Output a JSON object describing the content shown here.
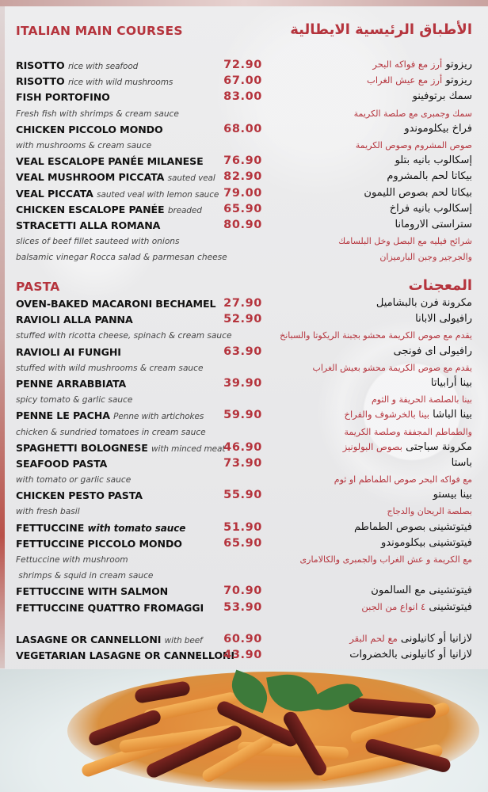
{
  "colors": {
    "accent": "#b5343d",
    "text": "#111111",
    "background": "#e9e9ea"
  },
  "sections": [
    {
      "title": "ITALIAN MAIN COURSES",
      "title_ar": "الأطباق الرئيسية الايطالية",
      "rows": [
        {
          "kind": "item",
          "name": "RISOTTO",
          "desc": "rice with seafood",
          "price": "72.90",
          "ar": "ريزوتو",
          "ar_desc": "أرز مع فواكه البحر"
        },
        {
          "kind": "item",
          "name": "RISOTTO",
          "desc": "rice with wild mushrooms",
          "price": "67.00",
          "ar": "ريزوتو",
          "ar_desc": "أرز مع عيش الغراب"
        },
        {
          "kind": "item",
          "name": "FISH PORTOFINO",
          "price": "83.00",
          "ar": "سمك برتوفينو"
        },
        {
          "kind": "desc",
          "en": "Fresh fish with shrimps & cream sauce",
          "ar": "سمك وجمبرى مع صلصة الكريمة"
        },
        {
          "kind": "item",
          "name": "CHICKEN PICCOLO MONDO",
          "price": "68.00",
          "ar": "فراخ بيكلوموندو"
        },
        {
          "kind": "desc",
          "en": "with mushrooms & cream sauce",
          "ar": "صوص المشروم وصوص الكريمة"
        },
        {
          "kind": "item",
          "name": "VEAL ESCALOPE PANÉE MILANESE",
          "price": "76.90",
          "ar": "إسكالوب بانيه بتلو"
        },
        {
          "kind": "item",
          "name": "VEAL MUSHROOM PICCATA",
          "desc": "sauted veal",
          "price": "82.90",
          "ar": "بيكاتا لحم بالمشروم"
        },
        {
          "kind": "item",
          "name": "VEAL PICCATA",
          "desc": "sauted veal with lemon sauce",
          "price": "79.00",
          "ar": "بيكاتا لحم بصوص الليمون"
        },
        {
          "kind": "item",
          "name": "CHICKEN ESCALOPE PANÉE",
          "desc": "breaded",
          "price": "65.90",
          "ar": "إسكالوب بانيه فراخ"
        },
        {
          "kind": "item",
          "name": "STRACETTI ALLA ROMANA",
          "price": "80.90",
          "ar": "ستراستى الارومانا"
        },
        {
          "kind": "desc",
          "en": "slices of beef fillet sauteed with onions",
          "ar": "شرائح فيليه مع البصل وخل البلسامك"
        },
        {
          "kind": "desc",
          "en": "balsamic vinegar Rocca salad & parmesan cheese",
          "ar": "والجرجير وجبن البارميزان"
        }
      ]
    },
    {
      "title": "PASTA",
      "title_ar": "المعجنات",
      "rows": [
        {
          "kind": "item",
          "name": "OVEN-BAKED MACARONI BECHAMEL",
          "price": "27.90",
          "ar": "مكرونة فرن بالبشاميل"
        },
        {
          "kind": "item",
          "name": "RAVIOLI ALLA PANNA",
          "price": "52.90",
          "ar": "رافيولى الابانا"
        },
        {
          "kind": "desc",
          "en": "stuffed with ricotta cheese, spinach & cream sauce",
          "ar": "يقدم مع صوص الكريمة محشو بجبنة الريكوتا والسبانخ"
        },
        {
          "kind": "item",
          "name": "RAVIOLI AI FUNGHI",
          "price": "63.90",
          "ar": "رافيولى اى فونجى"
        },
        {
          "kind": "desc",
          "en": "stuffed with wild mushrooms & cream sauce",
          "ar": "يقدم مع صوص الكريمة محشو بعيش الغراب"
        },
        {
          "kind": "item",
          "name": "PENNE ARRABBIATA",
          "price": "39.90",
          "ar": "بينا أرابياتا"
        },
        {
          "kind": "desc",
          "en": "spicy tomato & garlic sauce",
          "ar": "بينا بالصلصة الحريفة و الثوم"
        },
        {
          "kind": "item",
          "name": "PENNE LE PACHA",
          "desc": "Penne with artichokes",
          "price": "59.90",
          "ar": "بينا الباشا",
          "ar_desc": "بينا بالخرشوف والفراخ"
        },
        {
          "kind": "desc",
          "en": "chicken & sundried tomatoes in cream sauce",
          "ar": "والطماطم المجففة وصلصة الكريمة"
        },
        {
          "kind": "item",
          "name": "SPAGHETTI BOLOGNESE",
          "desc": "with minced meat",
          "price": "46.90",
          "ar": "مكرونة سباجتى",
          "ar_desc": "بصوص البولونيز"
        },
        {
          "kind": "item",
          "name": "SEAFOOD PASTA",
          "price": "73.90",
          "ar": "باستا"
        },
        {
          "kind": "desc",
          "en": "with tomato or garlic sauce",
          "ar": "مع فواكه البحر  صوص الطماطم او ثوم"
        },
        {
          "kind": "item",
          "name": "CHICKEN PESTO PASTA",
          "price": "55.90",
          "ar": "بينا بيستو"
        },
        {
          "kind": "desc",
          "en": "with fresh basil",
          "ar": "بصلصة الريحان والدجاج"
        },
        {
          "kind": "item",
          "name": "FETTUCCINE",
          "desc": "with tomato sauce",
          "desc_bold": true,
          "price": "51.90",
          "ar": "فيتوتشينى بصوص الطماطم"
        },
        {
          "kind": "item",
          "name": "FETTUCCINE PICCOLO MONDO",
          "price": "65.90",
          "ar": "فيتوتشينى بيكلوموندو"
        },
        {
          "kind": "desc",
          "en": "Fettuccine with mushroom",
          "ar": "مع الكريمة و عش الغراب والجمبرى والكالامارى"
        },
        {
          "kind": "desc",
          "en": " shrimps & squid in cream sauce"
        },
        {
          "kind": "item",
          "name": "FETTUCCINE WITH SALMON",
          "price": "70.90",
          "ar": "فيتوتشينى مع السالمون"
        },
        {
          "kind": "item",
          "name": "FETTUCCINE QUATTRO FROMAGGI",
          "price": "53.90",
          "ar": "فيتوتشينى",
          "ar_desc": "٤ انواع من الجبن"
        },
        {
          "kind": "spacer"
        },
        {
          "kind": "item",
          "name": "LASAGNE OR CANNELLONI",
          "desc": "with beef",
          "price": "60.90",
          "ar": "لازانيا  أو كانيلونى",
          "ar_desc": "مع لحم البقر"
        },
        {
          "kind": "item",
          "name": "VEGETARIAN LASAGNE OR CANNELLONI",
          "price": "43.90",
          "ar": "لازانيا أو كانيلونى بالخضروات"
        }
      ]
    }
  ],
  "photo": {
    "subject": "penne-pasta-dish-image"
  }
}
